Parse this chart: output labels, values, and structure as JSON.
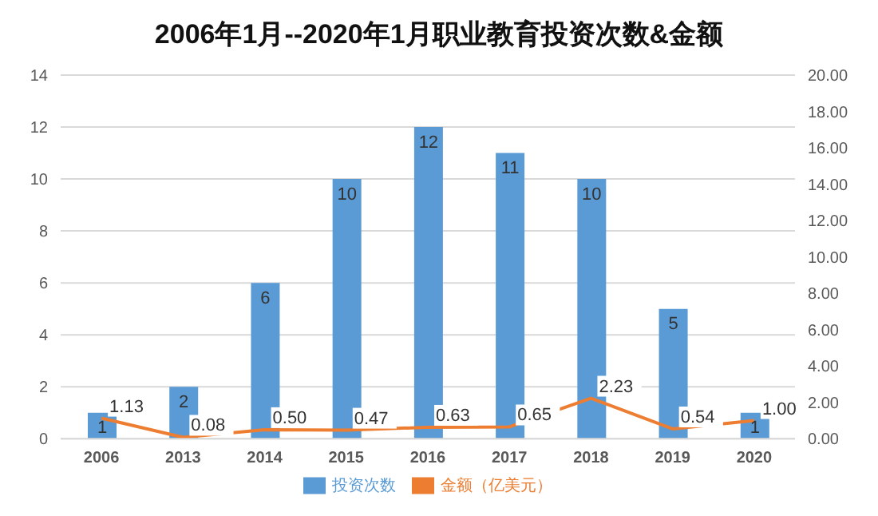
{
  "chart_data": {
    "type": "bar",
    "title": "2006年1月--2020年1月职业教育投资次数&金额",
    "categories": [
      "2006",
      "2013",
      "2014",
      "2015",
      "2016",
      "2017",
      "2018",
      "2019",
      "2020"
    ],
    "series": [
      {
        "name": "投资次数",
        "color": "#5b9bd5",
        "values": [
          1,
          2,
          6,
          10,
          12,
          11,
          10,
          5,
          1
        ]
      },
      {
        "name": "金额（亿美元）",
        "type": "line",
        "axis": "y2",
        "color": "#ed7d31",
        "values": [
          1.13,
          0.08,
          0.5,
          0.47,
          0.63,
          0.65,
          2.23,
          0.54,
          1.0
        ],
        "value_labels": [
          "1.13",
          "0.08",
          "0.50",
          "0.47",
          "0.63",
          "0.65",
          "2.23",
          "0.54",
          "1.00"
        ]
      }
    ],
    "ylim": [
      0,
      14
    ],
    "yticks": [
      0,
      2,
      4,
      6,
      8,
      10,
      12,
      14
    ],
    "y2lim": [
      0,
      20
    ],
    "y2ticks": [
      {
        "value": 0,
        "label": "0.00"
      },
      {
        "value": 2,
        "label": "2.00"
      },
      {
        "value": 4,
        "label": "4.00"
      },
      {
        "value": 6,
        "label": "6.00"
      },
      {
        "value": 8,
        "label": "8.00"
      },
      {
        "value": 10,
        "label": "10.00"
      },
      {
        "value": 12,
        "label": "12.00"
      },
      {
        "value": 14,
        "label": "14.00"
      },
      {
        "value": 16,
        "label": "16.00"
      },
      {
        "value": 18,
        "label": "18.00"
      },
      {
        "value": 20,
        "label": "20.00"
      }
    ],
    "grid": "y",
    "legend": "bottom",
    "data_labels": true,
    "marker": "none",
    "line_style": "solid"
  }
}
